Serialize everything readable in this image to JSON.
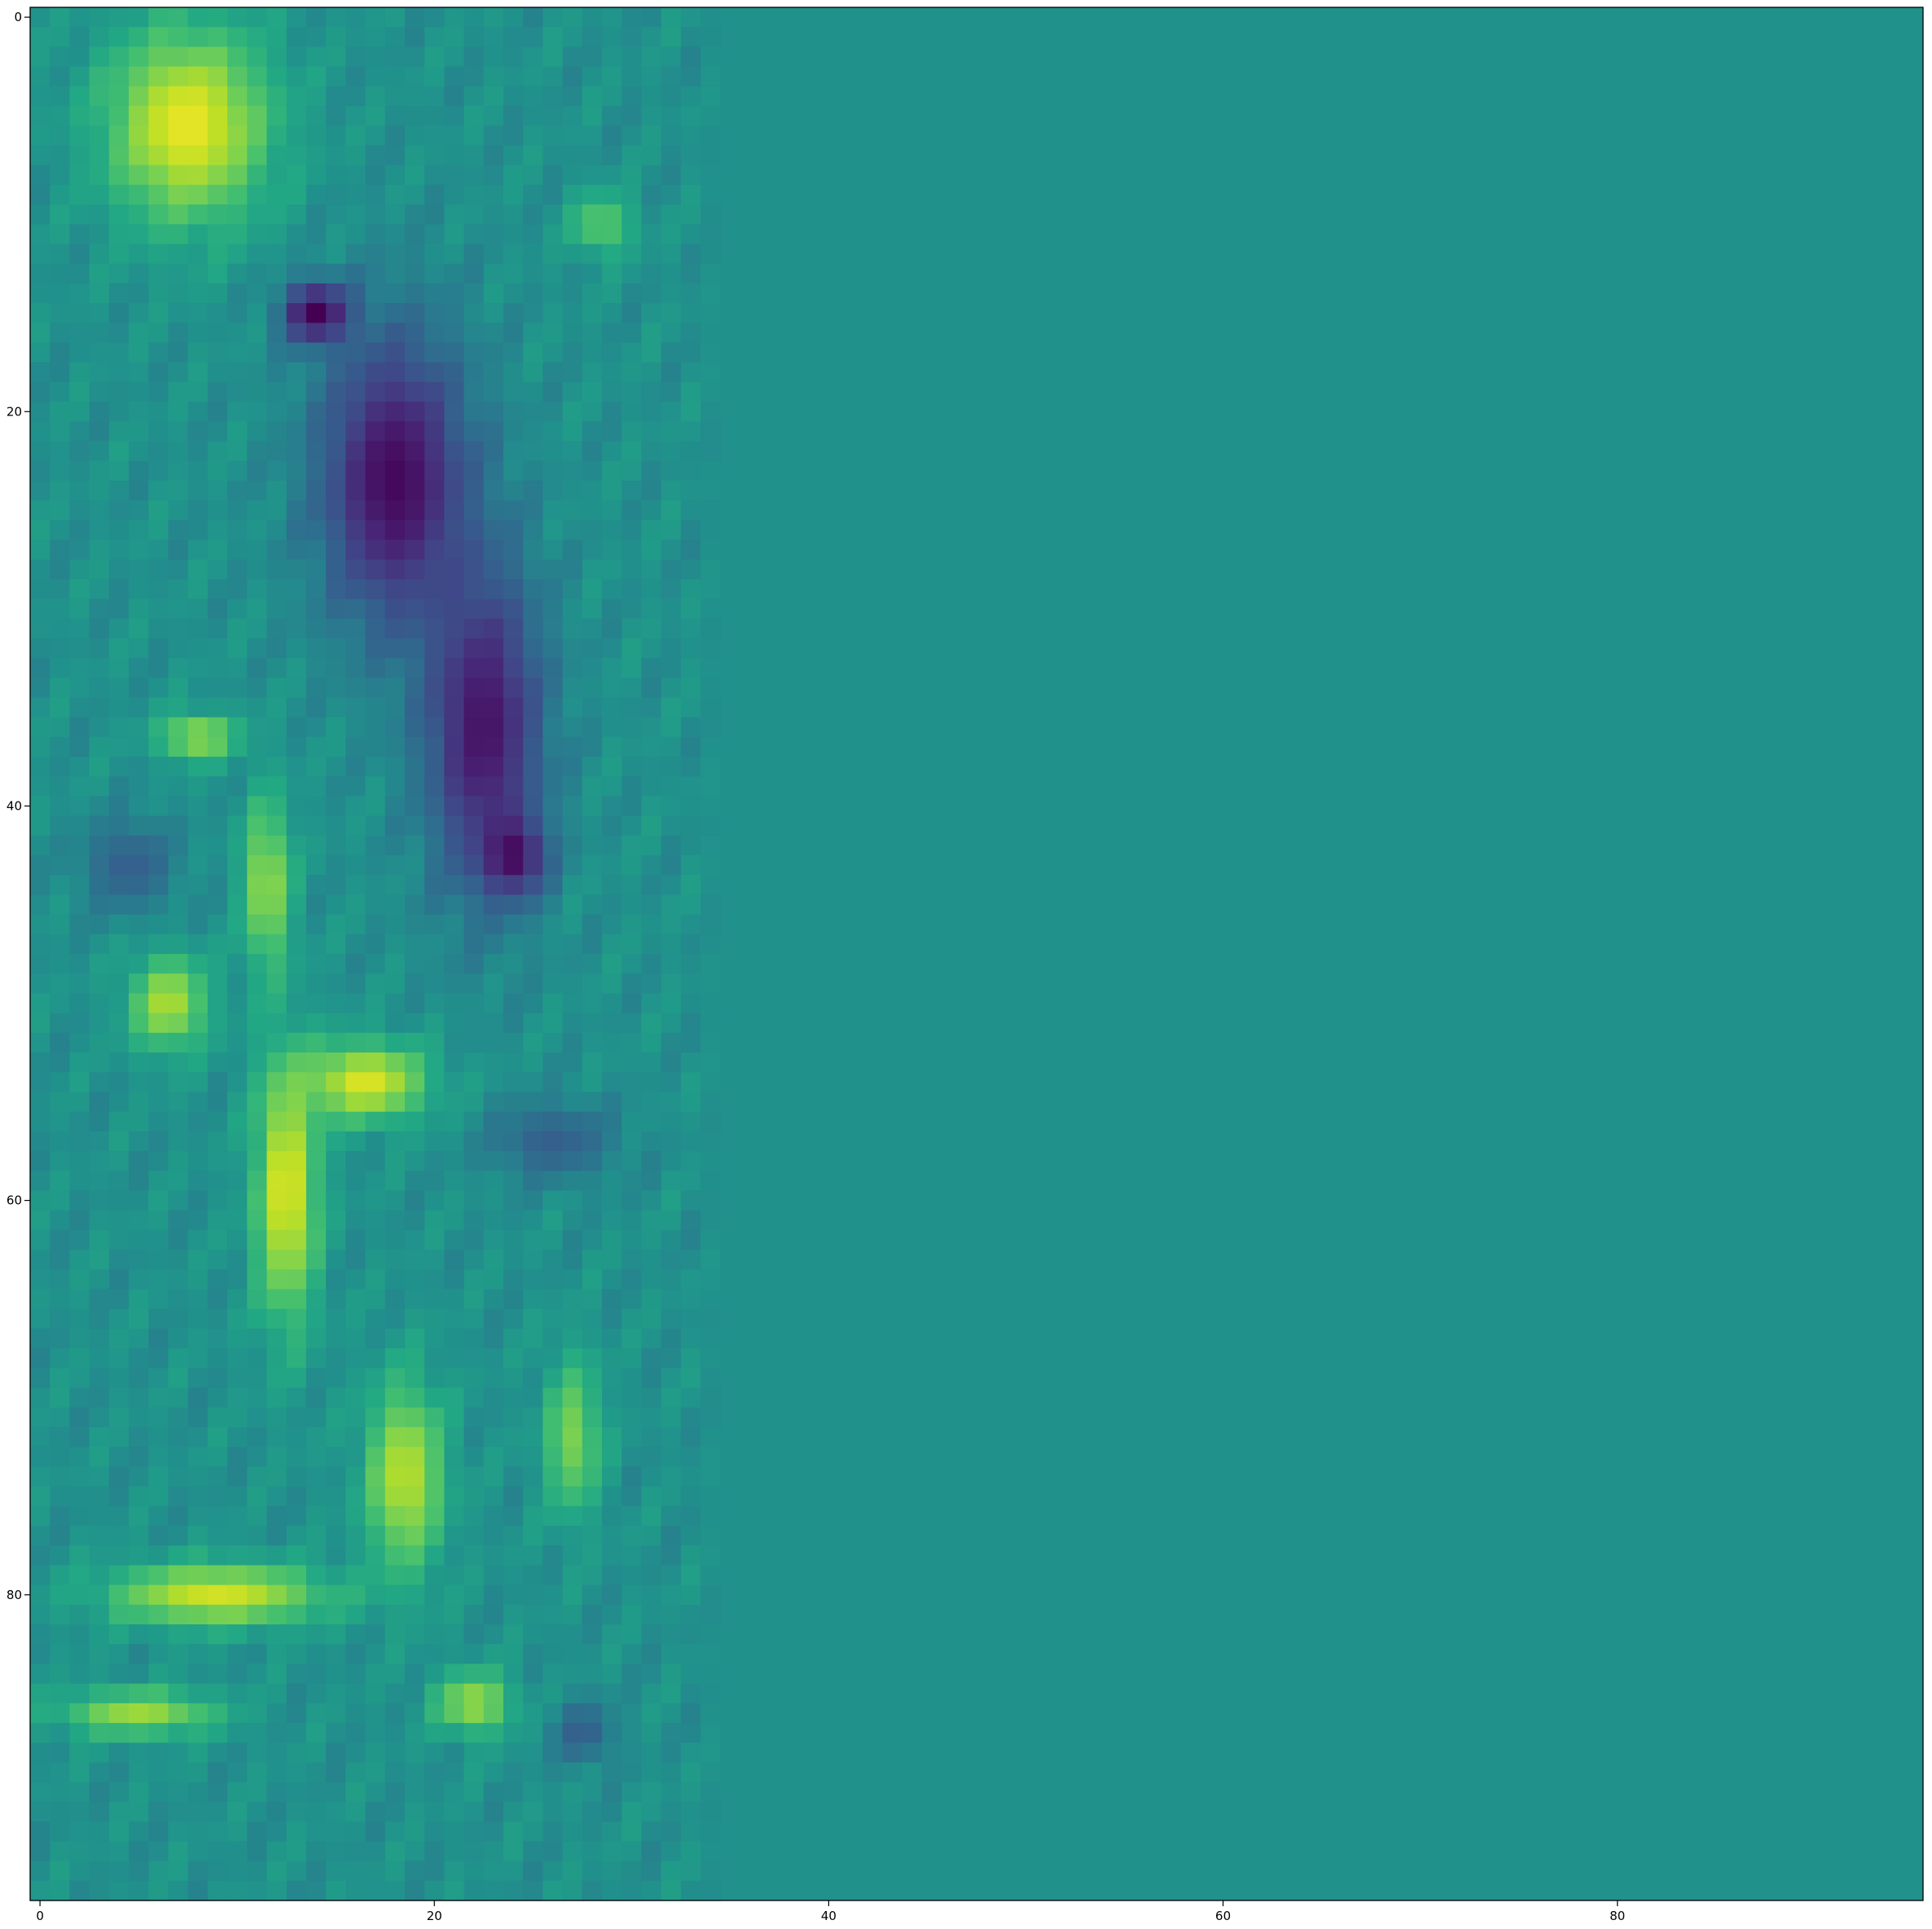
{
  "chart_data": {
    "type": "heatmap",
    "title": "",
    "xlabel": "",
    "ylabel": "",
    "colormap": "viridis",
    "value_range": [
      0,
      1
    ],
    "background_value": 0.5,
    "grid": false,
    "legend": "none",
    "rows": 96,
    "cols": 96,
    "xlim": [
      -0.5,
      95.5
    ],
    "ylim": [
      95.5,
      -0.5
    ],
    "x_ticks": [
      0,
      20,
      40,
      60,
      80
    ],
    "x_tick_labels": [
      "0",
      "20",
      "40",
      "60",
      "80"
    ],
    "y_ticks": [
      0,
      20,
      40,
      60,
      80
    ],
    "y_tick_labels": [
      "0",
      "20",
      "40",
      "60",
      "80"
    ],
    "active_columns": [
      0,
      34
    ],
    "regions": [
      {
        "kind": "high",
        "value": 0.97,
        "cx": 7.5,
        "cy": 5.5,
        "rx": 5.2,
        "ry": 6.2
      },
      {
        "kind": "low",
        "value": 0.02,
        "cx": 18.0,
        "cy": 23.5,
        "rx": 4.8,
        "ry": 9.5
      },
      {
        "kind": "low",
        "value": 0.05,
        "cx": 22.5,
        "cy": 36.0,
        "rx": 3.8,
        "ry": 10.5
      },
      {
        "kind": "low",
        "value": 0.0,
        "cx": 14.0,
        "cy": 15.0,
        "rx": 2.2,
        "ry": 2.0
      },
      {
        "kind": "low",
        "value": 0.02,
        "cx": 24.0,
        "cy": 42.5,
        "rx": 2.0,
        "ry": 2.5
      },
      {
        "kind": "high",
        "value": 0.85,
        "cx": 8.0,
        "cy": 36.5,
        "rx": 2.5,
        "ry": 1.5
      },
      {
        "kind": "high",
        "value": 0.86,
        "cx": 11.5,
        "cy": 44.0,
        "rx": 1.5,
        "ry": 5.5
      },
      {
        "kind": "high",
        "value": 0.88,
        "cx": 6.5,
        "cy": 50.0,
        "rx": 2.5,
        "ry": 3.0
      },
      {
        "kind": "high",
        "value": 0.96,
        "cx": 12.5,
        "cy": 59.5,
        "rx": 2.0,
        "ry": 8.5
      },
      {
        "kind": "high",
        "value": 0.95,
        "cx": 16.5,
        "cy": 54.0,
        "rx": 4.0,
        "ry": 2.5
      },
      {
        "kind": "high",
        "value": 0.9,
        "cx": 18.5,
        "cy": 74.0,
        "rx": 2.5,
        "ry": 6.0
      },
      {
        "kind": "high",
        "value": 0.93,
        "cx": 9.0,
        "cy": 80.0,
        "rx": 7.0,
        "ry": 2.0
      },
      {
        "kind": "high",
        "value": 0.85,
        "cx": 5.0,
        "cy": 86.0,
        "rx": 5.0,
        "ry": 1.5
      },
      {
        "kind": "high",
        "value": 0.85,
        "cx": 22.0,
        "cy": 85.5,
        "rx": 2.5,
        "ry": 2.0
      },
      {
        "kind": "high",
        "value": 0.8,
        "cx": 27.0,
        "cy": 72.0,
        "rx": 1.8,
        "ry": 5.0
      },
      {
        "kind": "low",
        "value": 0.3,
        "cx": 26.0,
        "cy": 57.0,
        "rx": 4.0,
        "ry": 2.5
      },
      {
        "kind": "low",
        "value": 0.3,
        "cx": 4.5,
        "cy": 43.0,
        "rx": 3.0,
        "ry": 3.0
      },
      {
        "kind": "low",
        "value": 0.3,
        "cx": 27.5,
        "cy": 87.0,
        "rx": 2.0,
        "ry": 2.0
      },
      {
        "kind": "high",
        "value": 0.75,
        "cx": 28.5,
        "cy": 10.5,
        "rx": 2.0,
        "ry": 2.0
      }
    ]
  }
}
